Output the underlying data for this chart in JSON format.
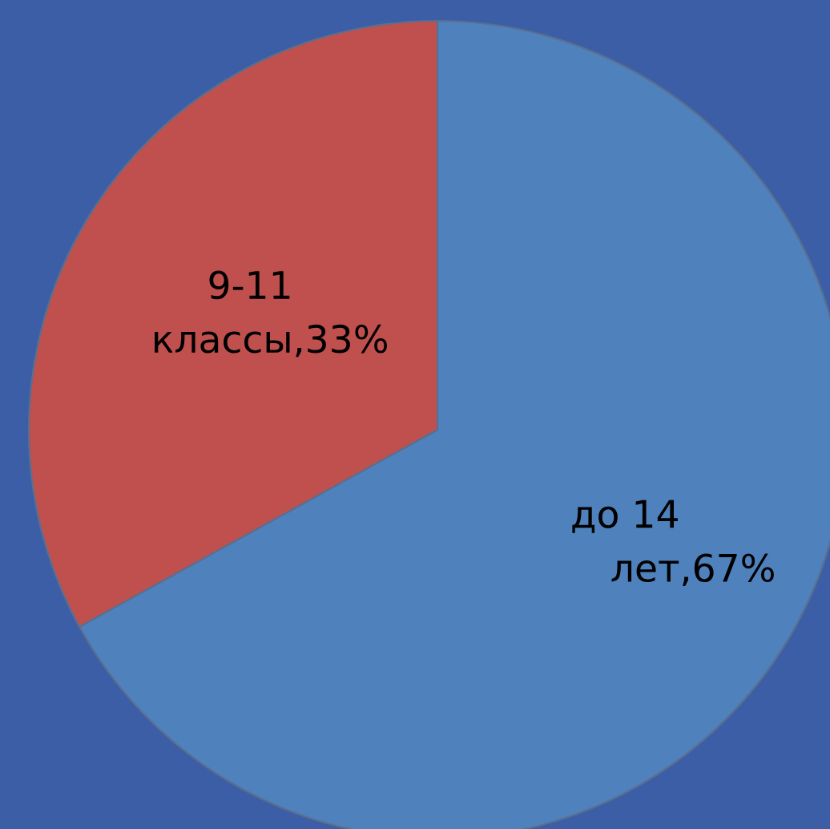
{
  "chart_data": {
    "type": "pie",
    "categories": [
      "до 14 лет",
      "9-11 классы"
    ],
    "values": [
      67,
      33
    ],
    "colors": [
      "#4f81bd",
      "#c0504d"
    ],
    "value_labels": [
      ",67%",
      ",33%"
    ]
  }
}
